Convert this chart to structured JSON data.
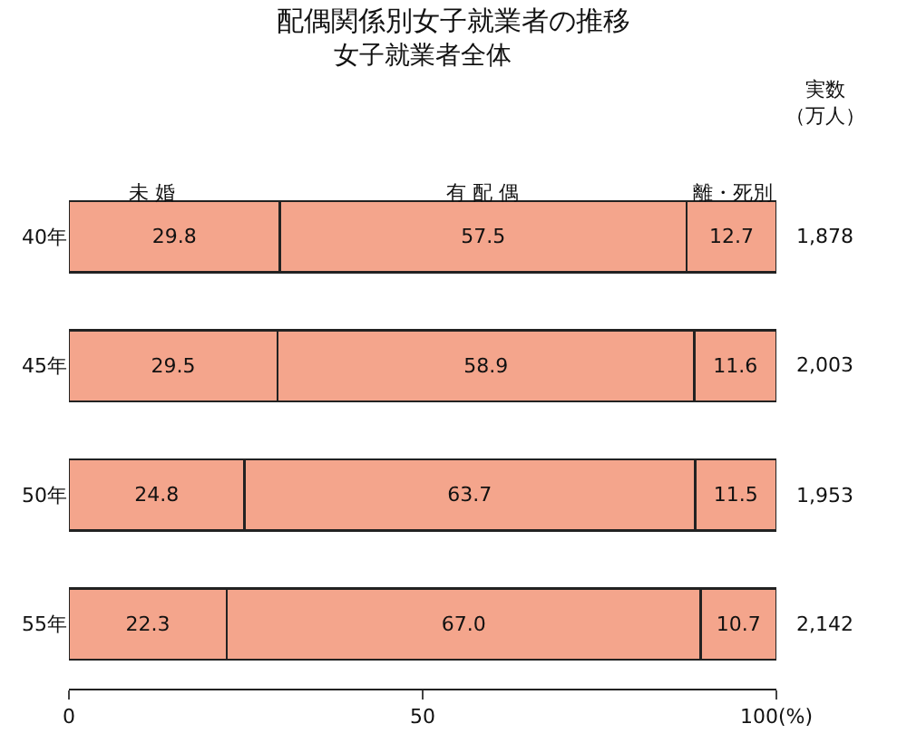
{
  "chart_data": {
    "type": "bar",
    "orientation": "horizontal",
    "stacked": true,
    "title": "配偶関係別女子就業者の推移",
    "subtitle": "女子就業者全体",
    "categories": [
      "40年",
      "45年",
      "50年",
      "55年"
    ],
    "series": [
      {
        "name": "未 婚",
        "color": "#f4a58c",
        "values": [
          29.8,
          29.5,
          24.8,
          22.3
        ],
        "value_labels": [
          "29.8",
          "29.5",
          "24.8",
          "22.3"
        ]
      },
      {
        "name": "有 配 偶",
        "color": "#f4a58c",
        "values": [
          57.5,
          58.9,
          63.7,
          67.0
        ],
        "value_labels": [
          "57.5",
          "58.9",
          "63.7",
          "67.0"
        ]
      },
      {
        "name": "離・死別",
        "color": "#f4a58c",
        "values": [
          12.7,
          11.6,
          11.5,
          10.7
        ],
        "value_labels": [
          "12.7",
          "11.6",
          "11.5",
          "10.7"
        ]
      }
    ],
    "xlim": [
      0,
      100
    ],
    "xticks": [
      0,
      50,
      {
        "value": 100,
        "label": "100(%)"
      }
    ],
    "grid": false,
    "legend": false,
    "annotations": [
      "実数（万人）",
      "1,878",
      "2,003",
      "1,953",
      "2,142"
    ]
  }
}
